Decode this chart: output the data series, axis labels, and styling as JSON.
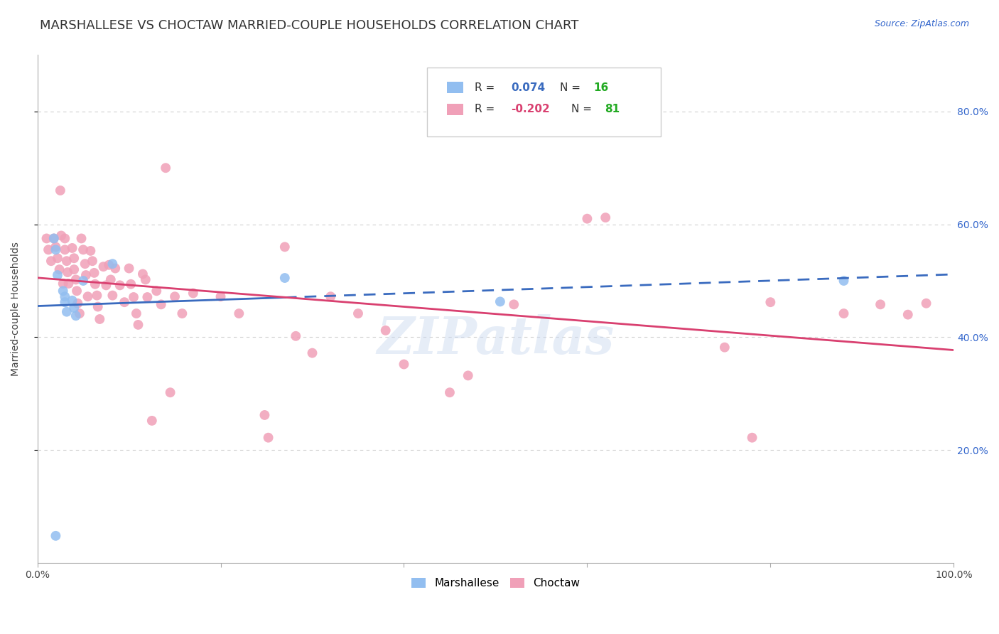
{
  "title": "MARSHALLESE VS CHOCTAW MARRIED-COUPLE HOUSEHOLDS CORRELATION CHART",
  "source": "Source: ZipAtlas.com",
  "ylabel": "Married-couple Households",
  "xlim": [
    0.0,
    1.0
  ],
  "ylim": [
    0.0,
    0.9
  ],
  "yticks": [
    0.2,
    0.4,
    0.6,
    0.8
  ],
  "ytick_labels": [
    "20.0%",
    "40.0%",
    "60.0%",
    "80.0%"
  ],
  "xticks": [
    0.0,
    0.2,
    0.4,
    0.6,
    0.8,
    1.0
  ],
  "xtick_labels": [
    "0.0%",
    "",
    "",
    "",
    "",
    "100.0%"
  ],
  "marshallese_color": "#92bef0",
  "choctaw_color": "#f0a0b8",
  "trend_marshallese_color": "#3a6bbf",
  "trend_choctaw_color": "#d94070",
  "r_color": "#3a6bbf",
  "n_color": "#22aa22",
  "legend_r_marsh": "R =  0.074",
  "legend_n_marsh": "N = 16",
  "legend_r_choc": "R = -0.202",
  "legend_n_choc": "N = 81",
  "marshallese_x": [
    0.018,
    0.02,
    0.022,
    0.028,
    0.03,
    0.03,
    0.032,
    0.038,
    0.04,
    0.042,
    0.05,
    0.082,
    0.27,
    0.505,
    0.88,
    0.02
  ],
  "marshallese_y": [
    0.575,
    0.555,
    0.51,
    0.482,
    0.462,
    0.472,
    0.445,
    0.465,
    0.452,
    0.438,
    0.5,
    0.53,
    0.505,
    0.463,
    0.5,
    0.048
  ],
  "choctaw_x": [
    0.01,
    0.012,
    0.015,
    0.018,
    0.02,
    0.022,
    0.024,
    0.025,
    0.026,
    0.028,
    0.03,
    0.03,
    0.032,
    0.033,
    0.034,
    0.038,
    0.04,
    0.04,
    0.042,
    0.043,
    0.044,
    0.046,
    0.048,
    0.05,
    0.052,
    0.053,
    0.055,
    0.058,
    0.06,
    0.062,
    0.063,
    0.065,
    0.066,
    0.068,
    0.072,
    0.075,
    0.078,
    0.08,
    0.082,
    0.085,
    0.09,
    0.095,
    0.1,
    0.102,
    0.105,
    0.108,
    0.11,
    0.115,
    0.118,
    0.12,
    0.125,
    0.13,
    0.135,
    0.14,
    0.145,
    0.15,
    0.158,
    0.17,
    0.2,
    0.22,
    0.248,
    0.252,
    0.27,
    0.282,
    0.3,
    0.32,
    0.35,
    0.38,
    0.4,
    0.45,
    0.47,
    0.52,
    0.6,
    0.62,
    0.75,
    0.78,
    0.8,
    0.88,
    0.92,
    0.95,
    0.97
  ],
  "choctaw_y": [
    0.575,
    0.555,
    0.535,
    0.575,
    0.56,
    0.54,
    0.52,
    0.66,
    0.58,
    0.495,
    0.575,
    0.555,
    0.535,
    0.515,
    0.495,
    0.558,
    0.54,
    0.52,
    0.502,
    0.482,
    0.46,
    0.442,
    0.575,
    0.555,
    0.53,
    0.51,
    0.472,
    0.553,
    0.535,
    0.514,
    0.494,
    0.474,
    0.454,
    0.432,
    0.525,
    0.492,
    0.528,
    0.502,
    0.474,
    0.522,
    0.492,
    0.462,
    0.522,
    0.494,
    0.471,
    0.442,
    0.422,
    0.512,
    0.502,
    0.471,
    0.252,
    0.482,
    0.458,
    0.7,
    0.302,
    0.472,
    0.442,
    0.478,
    0.472,
    0.442,
    0.262,
    0.222,
    0.56,
    0.402,
    0.372,
    0.472,
    0.442,
    0.412,
    0.352,
    0.302,
    0.332,
    0.458,
    0.61,
    0.612,
    0.382,
    0.222,
    0.462,
    0.442,
    0.458,
    0.44,
    0.46
  ],
  "grid_color": "#d0d0d0",
  "watermark_text": "ZIPatlas",
  "watermark_color": "#c8d8ef",
  "marker_size": 100,
  "title_fontsize": 13,
  "source_fontsize": 9,
  "legend_fontsize": 11
}
